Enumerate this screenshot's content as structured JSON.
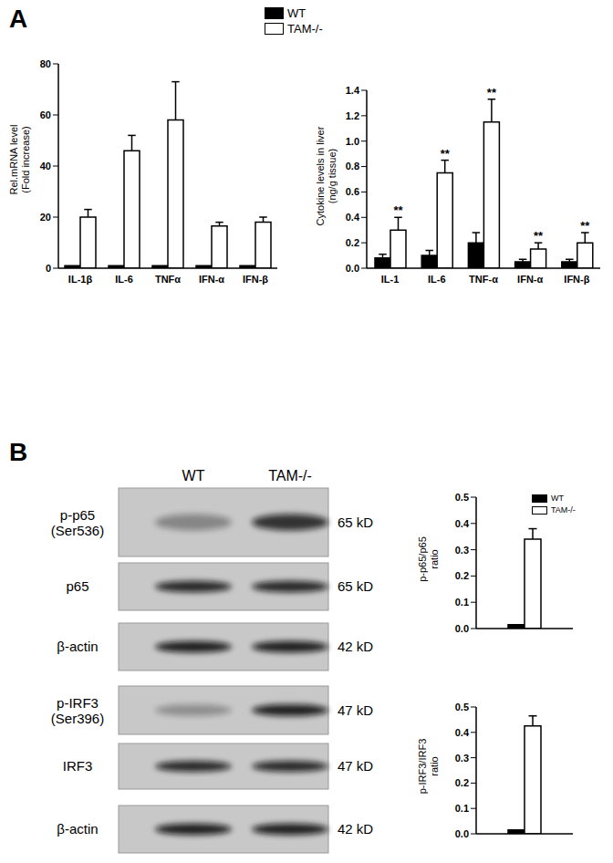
{
  "panel_labels": [
    "A",
    "B"
  ],
  "chart_data": [
    {
      "type": "bar",
      "ylabel": [
        "Rel.mRNA level",
        "(Fold increase)"
      ],
      "categories": [
        "IL-1β",
        "IL-6",
        "TNFα",
        "IFN-α",
        "IFN-β"
      ],
      "series": [
        {
          "name": "WT",
          "color": "#000000",
          "values": [
            1,
            1,
            1,
            1,
            1
          ]
        },
        {
          "name": "TAM-/-",
          "color": "#ffffff",
          "values": [
            20,
            46,
            58,
            16.5,
            18
          ],
          "errors": [
            3,
            6,
            15,
            1.5,
            2
          ]
        }
      ],
      "ylim": [
        0,
        80
      ],
      "yticks": [
        0,
        20,
        40,
        60,
        80
      ],
      "legend": "top"
    },
    {
      "type": "bar",
      "ylabel": [
        "Cytokine levels in liver",
        "(ng/g tissue)"
      ],
      "categories": [
        "IL-1",
        "IL-6",
        "TNF-α",
        "IFN-α",
        "IFN-β"
      ],
      "series": [
        {
          "name": "WT",
          "color": "#000000",
          "values": [
            0.08,
            0.1,
            0.2,
            0.05,
            0.05
          ],
          "errors": [
            0.03,
            0.04,
            0.08,
            0.02,
            0.02
          ]
        },
        {
          "name": "TAM-/-",
          "color": "#ffffff",
          "values": [
            0.3,
            0.75,
            1.15,
            0.15,
            0.2
          ],
          "errors": [
            0.1,
            0.1,
            0.18,
            0.05,
            0.08
          ],
          "significance": [
            "**",
            "**",
            "**",
            "**",
            "**"
          ]
        }
      ],
      "ylim": [
        0,
        1.4
      ],
      "yticks": [
        {
          "value": 0,
          "label": "0.0"
        },
        0.2,
        0.4,
        0.6,
        0.8,
        {
          "value": 1,
          "label": "1.0"
        },
        1.2,
        1.4
      ]
    },
    {
      "type": "bar",
      "ylabel": [
        "p-p65/p65",
        "ratio"
      ],
      "categories": [
        null
      ],
      "series": [
        {
          "name": "WT",
          "color": "#000000",
          "values": [
            0.015
          ]
        },
        {
          "name": "TAM-/-",
          "color": "#ffffff",
          "values": [
            0.34
          ],
          "errors": [
            0.04
          ]
        }
      ],
      "ylim": [
        0,
        0.5
      ],
      "yticks": [
        {
          "value": 0,
          "label": "0.0"
        },
        0.1,
        0.2,
        0.3,
        0.4,
        0.5
      ],
      "legend": "top right"
    },
    {
      "type": "bar",
      "ylabel": [
        "p-IRF3/IRF3",
        "ratio"
      ],
      "categories": [
        null
      ],
      "series": [
        {
          "name": "WT",
          "color": "#000000",
          "values": [
            0.015
          ]
        },
        {
          "name": "TAM-/-",
          "color": "#ffffff",
          "values": [
            0.425
          ],
          "errors": [
            0.04
          ]
        }
      ],
      "ylim": [
        0,
        0.5
      ],
      "yticks": [
        {
          "value": 0,
          "label": "0.0"
        },
        0.1,
        0.2,
        0.3,
        0.4,
        0.5
      ]
    }
  ],
  "blot_columns": [
    "WT",
    "TAM-/-"
  ],
  "blots": [
    [
      {
        "label": [
          "p-p65",
          "(Ser536)"
        ],
        "size": "65 kD"
      },
      {
        "label": [
          "p65"
        ],
        "size": "65 kD"
      },
      {
        "label": [
          "β-actin"
        ],
        "size": "42 kD"
      }
    ],
    [
      {
        "label": [
          "p-IRF3",
          "(Ser396)"
        ],
        "size": "47 kD"
      },
      {
        "label": [
          "IRF3"
        ],
        "size": "47 kD"
      },
      {
        "label": [
          "β-actin"
        ],
        "size": "42 kD"
      }
    ]
  ]
}
